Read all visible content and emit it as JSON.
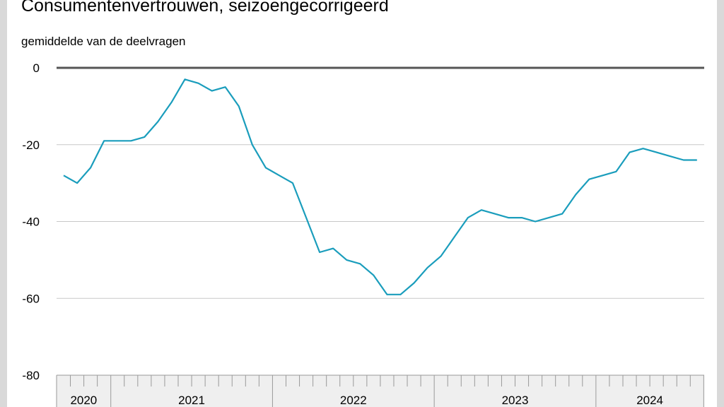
{
  "chart_data": {
    "type": "line",
    "title": "Consumentenvertrouwen, seizoengecorrigeerd",
    "ylabel": "gemiddelde van de deelvragen",
    "ylim": [
      -80,
      0
    ],
    "yticks": [
      0,
      -20,
      -40,
      -60,
      -80
    ],
    "ytick_labels": [
      "0",
      "-20",
      "-40",
      "-60",
      "-80"
    ],
    "years": [
      {
        "label": "2020",
        "months": 4
      },
      {
        "label": "2021",
        "months": 12
      },
      {
        "label": "2022",
        "months": 12
      },
      {
        "label": "2023",
        "months": 12
      },
      {
        "label": "2024",
        "months": 8
      }
    ],
    "x_start": "2020-09",
    "x_end": "2024-08",
    "grid": true,
    "colors": {
      "line": "#1a9dbc",
      "grid": "#c8c8c8",
      "zero": "#555555",
      "axis_band": "#efefef"
    },
    "series": [
      {
        "values": [
          -28,
          -30,
          -26,
          -19,
          -19,
          -19,
          -18,
          -14,
          -9,
          -3,
          -4,
          -6,
          -5,
          -10,
          -20,
          -26,
          -28,
          -30,
          -39,
          -48,
          -47,
          -50,
          -51,
          -54,
          -59,
          -59,
          -56,
          -52,
          -49,
          -44,
          -39,
          -37,
          -38,
          -39,
          -39,
          -40,
          -39,
          -38,
          -33,
          -29,
          -28,
          -27,
          -22,
          -21,
          -22,
          -23,
          -24,
          -24
        ]
      }
    ]
  }
}
